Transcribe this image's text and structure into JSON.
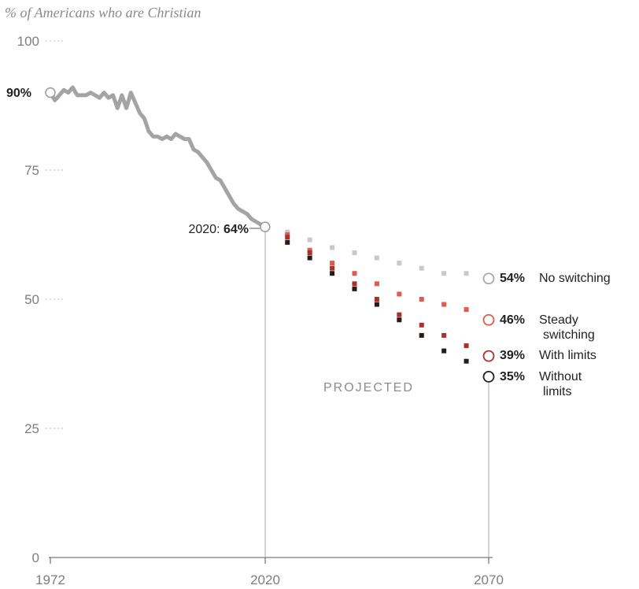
{
  "chart_data": {
    "type": "line",
    "subtitle": "% of Americans who are Christian",
    "x_ticks": [
      "1972",
      "2020",
      "2070"
    ],
    "y_ticks": [
      "100",
      "75",
      "50",
      "25",
      "0"
    ],
    "xlim": [
      1972,
      2070
    ],
    "ylim": [
      0,
      100
    ],
    "annotations": {
      "start_value": "90%",
      "marker_2020_prefix": "2020: ",
      "marker_2020_value": "64%",
      "projected": "PROJECTED"
    },
    "historical": {
      "x": [
        1972,
        1973,
        1974,
        1975,
        1976,
        1977,
        1978,
        1979,
        1980,
        1981,
        1982,
        1983,
        1984,
        1985,
        1986,
        1987,
        1988,
        1989,
        1990,
        1991,
        1992,
        1993,
        1994,
        1995,
        1996,
        1997,
        1998,
        1999,
        2000,
        2001,
        2002,
        2003,
        2004,
        2005,
        2006,
        2007,
        2008,
        2009,
        2010,
        2011,
        2012,
        2013,
        2014,
        2015,
        2016,
        2017,
        2018,
        2019,
        2020
      ],
      "values": [
        90,
        88.5,
        89.5,
        90.5,
        90,
        91,
        89.5,
        89.5,
        89.5,
        90,
        89.5,
        89,
        90,
        89,
        89.5,
        87,
        89.5,
        87,
        90,
        88,
        86,
        85,
        82.5,
        81.5,
        81.5,
        81,
        81.5,
        81,
        82,
        81.5,
        81,
        81,
        79,
        78.5,
        77.5,
        76.5,
        75,
        73.5,
        73,
        71.5,
        70,
        68.5,
        67.5,
        67,
        66.5,
        65.5,
        65,
        64.5,
        64
      ]
    },
    "projection_x": [
      2025,
      2030,
      2035,
      2040,
      2045,
      2050,
      2055,
      2060,
      2065,
      2070
    ],
    "series": [
      {
        "name": "No switching",
        "end_label": "54%",
        "color": "#c9c9c9",
        "values": [
          63,
          61.5,
          60,
          59,
          58,
          57,
          56,
          55,
          55,
          54
        ]
      },
      {
        "name": "Steady switching",
        "name_line2": "switching",
        "name_line1": "Steady",
        "end_label": "46%",
        "color": "#e05a4e",
        "values": [
          62.5,
          59.5,
          57,
          55,
          53,
          51,
          50,
          49,
          48,
          46
        ]
      },
      {
        "name": "With limits",
        "end_label": "39%",
        "color": "#a9312c",
        "values": [
          62,
          59,
          56,
          53,
          50,
          47,
          45,
          43,
          41,
          39
        ]
      },
      {
        "name": "Without limits",
        "name_line1": "Without",
        "name_line2": "limits",
        "end_label": "35%",
        "color": "#2a1a1a",
        "values": [
          61,
          58,
          55,
          52,
          49,
          46,
          43,
          40,
          38,
          35
        ]
      }
    ]
  }
}
